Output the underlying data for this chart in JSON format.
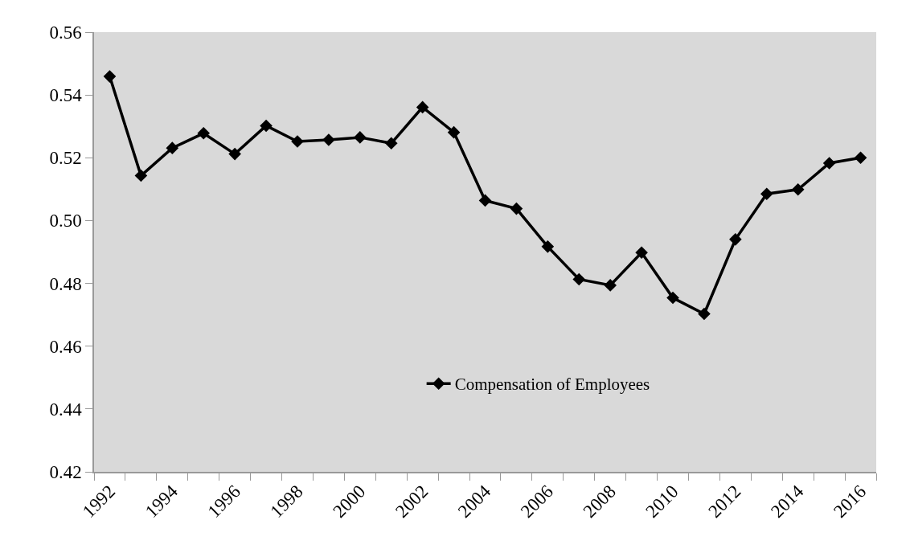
{
  "chart_data": {
    "type": "line",
    "categories": [
      "1992",
      null,
      "1994",
      null,
      "1996",
      null,
      "1998",
      null,
      "2000",
      null,
      "2002",
      null,
      "2004",
      null,
      "2006",
      null,
      "2008",
      null,
      "2010",
      null,
      "2012",
      null,
      "2014",
      null,
      "2016"
    ],
    "series": [
      {
        "name": "Compensation of Employees",
        "color": "#000000",
        "values": [
          0.5459,
          0.5143,
          0.5231,
          0.5278,
          0.5212,
          0.5302,
          0.5252,
          0.5257,
          0.5265,
          0.5246,
          0.5361,
          0.5281,
          0.5064,
          0.5038,
          0.4917,
          0.4813,
          0.4794,
          0.4898,
          0.4754,
          0.4703,
          0.494,
          0.5085,
          0.5099,
          0.5183,
          0.52
        ]
      }
    ],
    "ylim": [
      0.42,
      0.56
    ],
    "yticks": [
      0.42,
      0.44,
      0.46,
      0.48,
      {
        "value": 0.5,
        "label": "0.50"
      },
      0.52,
      0.54,
      0.56
    ],
    "grid": false,
    "legend": "bottom",
    "marker": "diamond",
    "line_style": "solid"
  }
}
